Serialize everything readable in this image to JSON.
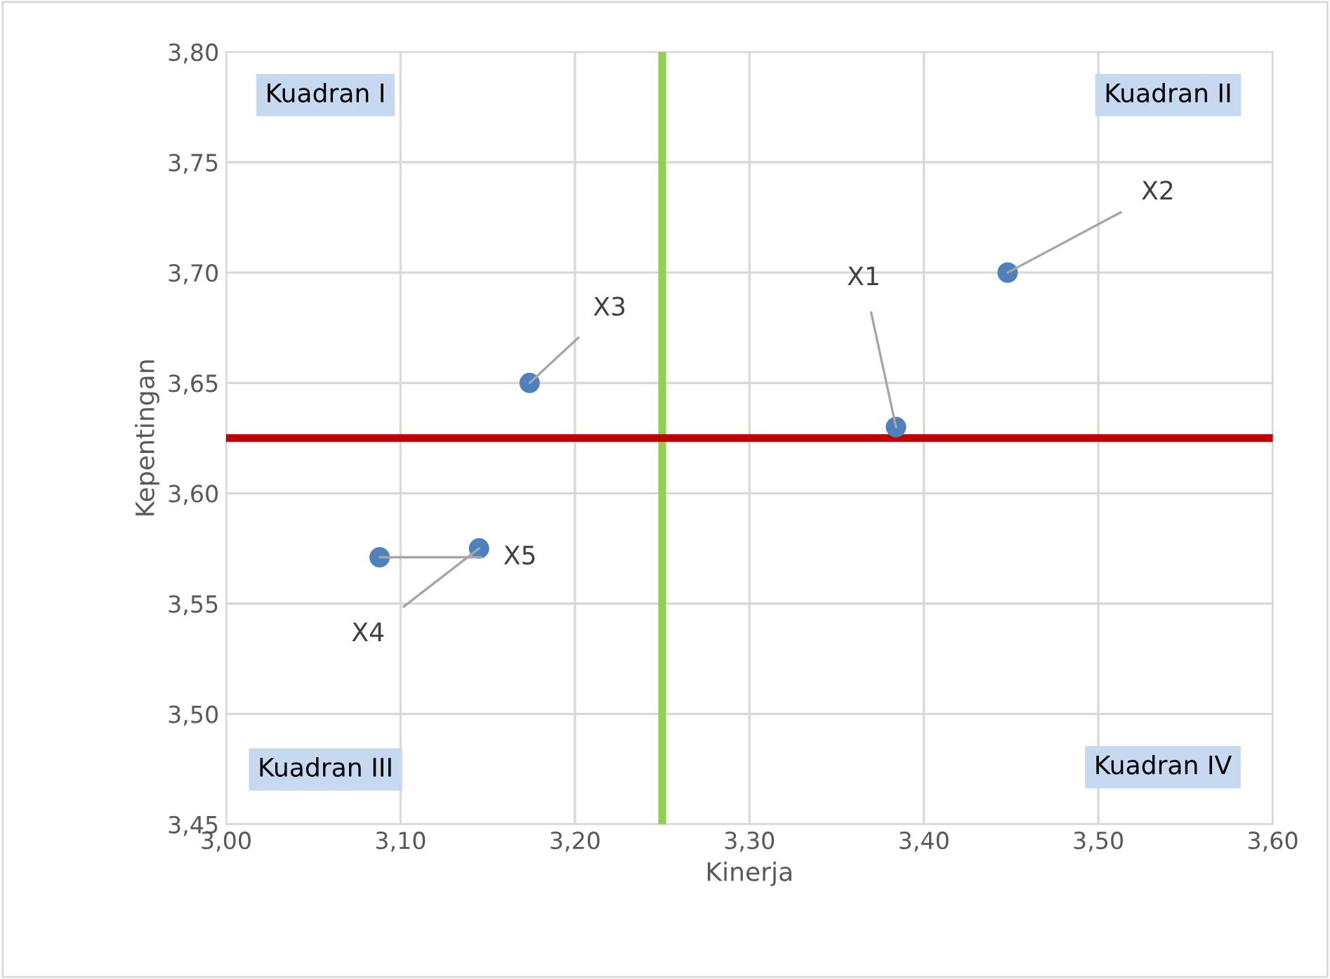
{
  "chart_data": {
    "type": "scatter",
    "xlabel": "Kinerja",
    "ylabel": "Kepentingan",
    "series": [
      {
        "color": "#4f81bd",
        "x": [
          3.384,
          3.448,
          3.174,
          3.145,
          3.088
        ],
        "values": [
          3.63,
          3.7,
          3.65,
          3.575,
          3.571
        ]
      }
    ],
    "xlim": [
      3.0,
      3.6
    ],
    "xticks": [
      {
        "value": 3.0,
        "label": "3,00"
      },
      {
        "value": 3.1,
        "label": "3,10"
      },
      {
        "value": 3.2,
        "label": "3,20"
      },
      {
        "value": 3.3,
        "label": "3,30"
      },
      {
        "value": 3.4,
        "label": "3,40"
      },
      {
        "value": 3.5,
        "label": "3,50"
      },
      {
        "value": 3.6,
        "label": "3,60"
      }
    ],
    "ylim": [
      3.45,
      3.8
    ],
    "yticks": [
      {
        "value": 3.45,
        "label": "3,45"
      },
      {
        "value": 3.5,
        "label": "3,50"
      },
      {
        "value": 3.55,
        "label": "3,55"
      },
      {
        "value": 3.6,
        "label": "3,60"
      },
      {
        "value": 3.65,
        "label": "3,65"
      },
      {
        "value": 3.7,
        "label": "3,70"
      },
      {
        "value": 3.75,
        "label": "3,75"
      },
      {
        "value": 3.8,
        "label": "3,80"
      }
    ],
    "ref_lines": [
      {
        "axis": "x",
        "value": 3.25,
        "color": "#92d050"
      },
      {
        "axis": "y",
        "value": 3.625,
        "color": "#c00000"
      }
    ],
    "annotations": [
      {
        "text": "X1",
        "x": 3.384,
        "y": 3.63
      },
      {
        "text": "X2",
        "x": 3.448,
        "y": 3.7
      },
      {
        "text": "X3",
        "x": 3.174,
        "y": 3.65
      },
      {
        "text": "X4",
        "x": 3.145,
        "y": 3.575
      },
      {
        "text": "X5",
        "x": 3.088,
        "y": 3.571
      },
      "Kuadran I",
      "Kuadran II",
      "Kuadran III",
      "Kuadran IV"
    ],
    "grid": true,
    "legend": false,
    "marker": "circle"
  }
}
